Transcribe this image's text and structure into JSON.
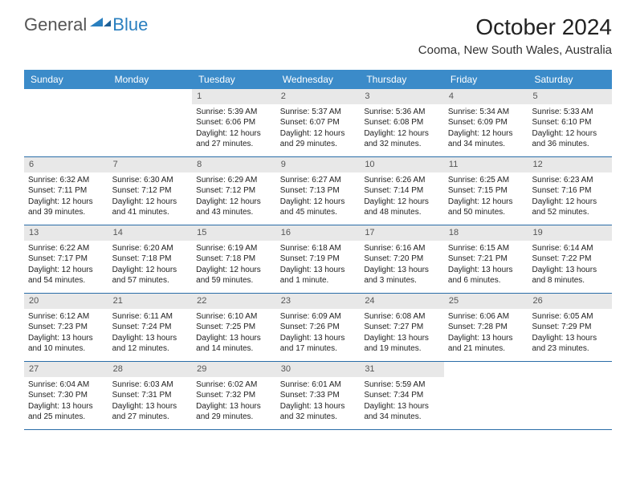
{
  "logo": {
    "general": "General",
    "blue": "Blue"
  },
  "title": "October 2024",
  "location": "Cooma, New South Wales, Australia",
  "colors": {
    "header_bg": "#3b8bc9",
    "header_text": "#ffffff",
    "daynum_bg": "#e8e8e8",
    "week_border": "#2a6da8",
    "logo_blue": "#2a7fbf"
  },
  "weekdays": [
    "Sunday",
    "Monday",
    "Tuesday",
    "Wednesday",
    "Thursday",
    "Friday",
    "Saturday"
  ],
  "weeks": [
    [
      {
        "n": "",
        "sr": "",
        "ss": "",
        "dl": ""
      },
      {
        "n": "",
        "sr": "",
        "ss": "",
        "dl": ""
      },
      {
        "n": "1",
        "sr": "Sunrise: 5:39 AM",
        "ss": "Sunset: 6:06 PM",
        "dl": "Daylight: 12 hours and 27 minutes."
      },
      {
        "n": "2",
        "sr": "Sunrise: 5:37 AM",
        "ss": "Sunset: 6:07 PM",
        "dl": "Daylight: 12 hours and 29 minutes."
      },
      {
        "n": "3",
        "sr": "Sunrise: 5:36 AM",
        "ss": "Sunset: 6:08 PM",
        "dl": "Daylight: 12 hours and 32 minutes."
      },
      {
        "n": "4",
        "sr": "Sunrise: 5:34 AM",
        "ss": "Sunset: 6:09 PM",
        "dl": "Daylight: 12 hours and 34 minutes."
      },
      {
        "n": "5",
        "sr": "Sunrise: 5:33 AM",
        "ss": "Sunset: 6:10 PM",
        "dl": "Daylight: 12 hours and 36 minutes."
      }
    ],
    [
      {
        "n": "6",
        "sr": "Sunrise: 6:32 AM",
        "ss": "Sunset: 7:11 PM",
        "dl": "Daylight: 12 hours and 39 minutes."
      },
      {
        "n": "7",
        "sr": "Sunrise: 6:30 AM",
        "ss": "Sunset: 7:12 PM",
        "dl": "Daylight: 12 hours and 41 minutes."
      },
      {
        "n": "8",
        "sr": "Sunrise: 6:29 AM",
        "ss": "Sunset: 7:12 PM",
        "dl": "Daylight: 12 hours and 43 minutes."
      },
      {
        "n": "9",
        "sr": "Sunrise: 6:27 AM",
        "ss": "Sunset: 7:13 PM",
        "dl": "Daylight: 12 hours and 45 minutes."
      },
      {
        "n": "10",
        "sr": "Sunrise: 6:26 AM",
        "ss": "Sunset: 7:14 PM",
        "dl": "Daylight: 12 hours and 48 minutes."
      },
      {
        "n": "11",
        "sr": "Sunrise: 6:25 AM",
        "ss": "Sunset: 7:15 PM",
        "dl": "Daylight: 12 hours and 50 minutes."
      },
      {
        "n": "12",
        "sr": "Sunrise: 6:23 AM",
        "ss": "Sunset: 7:16 PM",
        "dl": "Daylight: 12 hours and 52 minutes."
      }
    ],
    [
      {
        "n": "13",
        "sr": "Sunrise: 6:22 AM",
        "ss": "Sunset: 7:17 PM",
        "dl": "Daylight: 12 hours and 54 minutes."
      },
      {
        "n": "14",
        "sr": "Sunrise: 6:20 AM",
        "ss": "Sunset: 7:18 PM",
        "dl": "Daylight: 12 hours and 57 minutes."
      },
      {
        "n": "15",
        "sr": "Sunrise: 6:19 AM",
        "ss": "Sunset: 7:18 PM",
        "dl": "Daylight: 12 hours and 59 minutes."
      },
      {
        "n": "16",
        "sr": "Sunrise: 6:18 AM",
        "ss": "Sunset: 7:19 PM",
        "dl": "Daylight: 13 hours and 1 minute."
      },
      {
        "n": "17",
        "sr": "Sunrise: 6:16 AM",
        "ss": "Sunset: 7:20 PM",
        "dl": "Daylight: 13 hours and 3 minutes."
      },
      {
        "n": "18",
        "sr": "Sunrise: 6:15 AM",
        "ss": "Sunset: 7:21 PM",
        "dl": "Daylight: 13 hours and 6 minutes."
      },
      {
        "n": "19",
        "sr": "Sunrise: 6:14 AM",
        "ss": "Sunset: 7:22 PM",
        "dl": "Daylight: 13 hours and 8 minutes."
      }
    ],
    [
      {
        "n": "20",
        "sr": "Sunrise: 6:12 AM",
        "ss": "Sunset: 7:23 PM",
        "dl": "Daylight: 13 hours and 10 minutes."
      },
      {
        "n": "21",
        "sr": "Sunrise: 6:11 AM",
        "ss": "Sunset: 7:24 PM",
        "dl": "Daylight: 13 hours and 12 minutes."
      },
      {
        "n": "22",
        "sr": "Sunrise: 6:10 AM",
        "ss": "Sunset: 7:25 PM",
        "dl": "Daylight: 13 hours and 14 minutes."
      },
      {
        "n": "23",
        "sr": "Sunrise: 6:09 AM",
        "ss": "Sunset: 7:26 PM",
        "dl": "Daylight: 13 hours and 17 minutes."
      },
      {
        "n": "24",
        "sr": "Sunrise: 6:08 AM",
        "ss": "Sunset: 7:27 PM",
        "dl": "Daylight: 13 hours and 19 minutes."
      },
      {
        "n": "25",
        "sr": "Sunrise: 6:06 AM",
        "ss": "Sunset: 7:28 PM",
        "dl": "Daylight: 13 hours and 21 minutes."
      },
      {
        "n": "26",
        "sr": "Sunrise: 6:05 AM",
        "ss": "Sunset: 7:29 PM",
        "dl": "Daylight: 13 hours and 23 minutes."
      }
    ],
    [
      {
        "n": "27",
        "sr": "Sunrise: 6:04 AM",
        "ss": "Sunset: 7:30 PM",
        "dl": "Daylight: 13 hours and 25 minutes."
      },
      {
        "n": "28",
        "sr": "Sunrise: 6:03 AM",
        "ss": "Sunset: 7:31 PM",
        "dl": "Daylight: 13 hours and 27 minutes."
      },
      {
        "n": "29",
        "sr": "Sunrise: 6:02 AM",
        "ss": "Sunset: 7:32 PM",
        "dl": "Daylight: 13 hours and 29 minutes."
      },
      {
        "n": "30",
        "sr": "Sunrise: 6:01 AM",
        "ss": "Sunset: 7:33 PM",
        "dl": "Daylight: 13 hours and 32 minutes."
      },
      {
        "n": "31",
        "sr": "Sunrise: 5:59 AM",
        "ss": "Sunset: 7:34 PM",
        "dl": "Daylight: 13 hours and 34 minutes."
      },
      {
        "n": "",
        "sr": "",
        "ss": "",
        "dl": ""
      },
      {
        "n": "",
        "sr": "",
        "ss": "",
        "dl": ""
      }
    ]
  ]
}
